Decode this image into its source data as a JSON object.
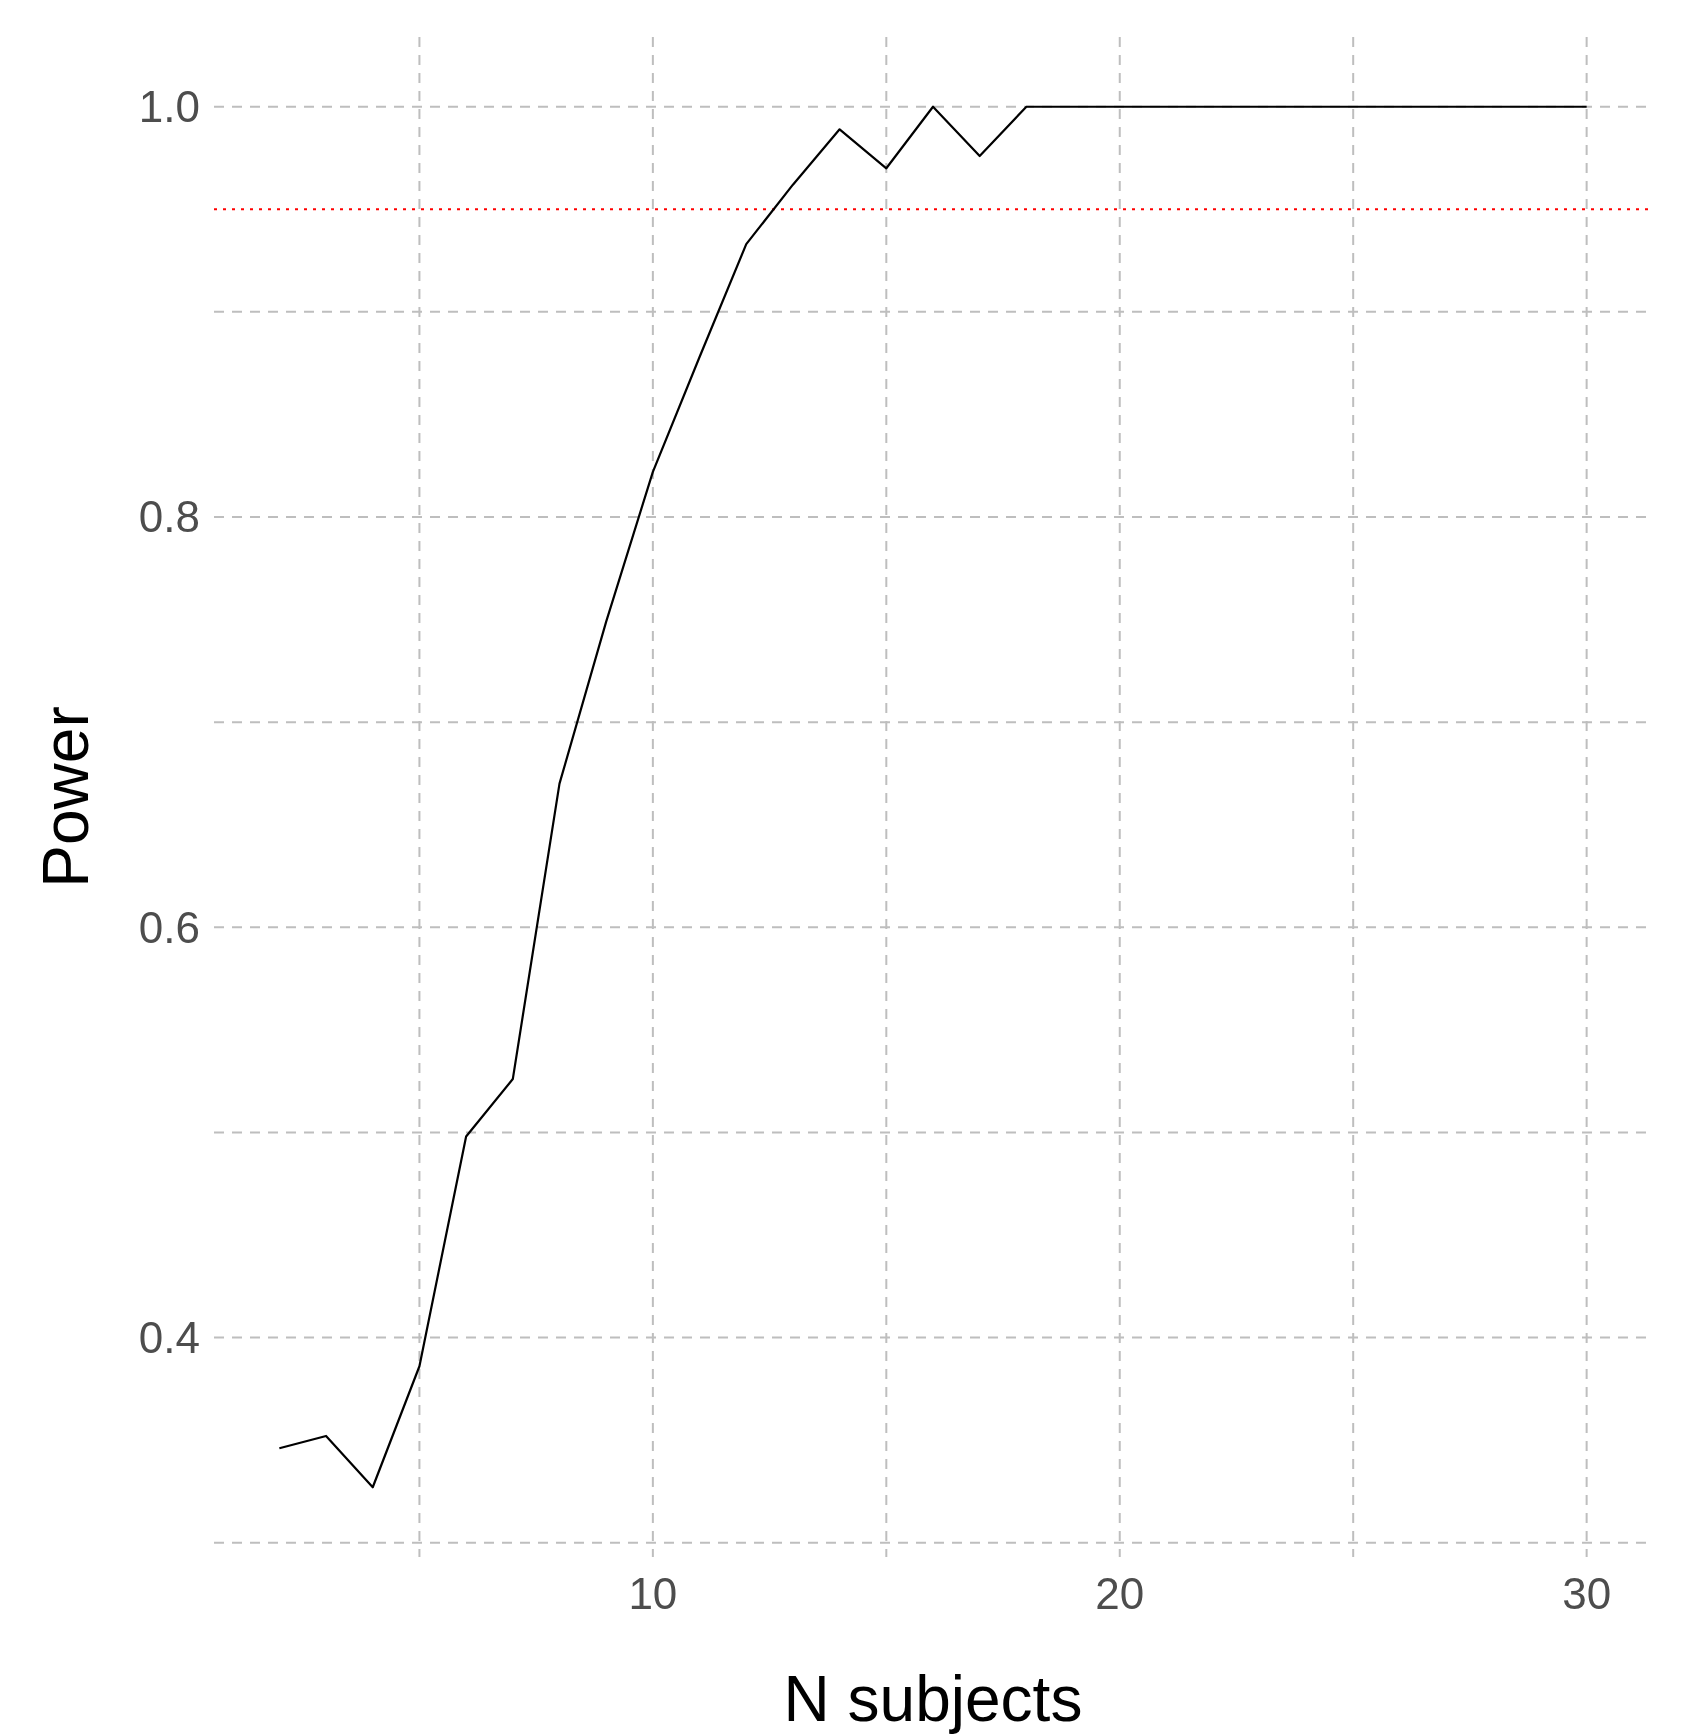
{
  "chart_data": {
    "type": "line",
    "xlabel": "N subjects",
    "ylabel": "Power",
    "x": [
      2,
      3,
      4,
      5,
      6,
      7,
      8,
      9,
      10,
      11,
      12,
      13,
      14,
      15,
      16,
      17,
      18,
      19,
      20,
      21,
      22,
      23,
      24,
      25,
      26,
      27,
      28,
      29,
      30
    ],
    "series": [
      {
        "color": "#000000",
        "values": [
          0.346,
          0.352,
          0.327,
          0.386,
          0.498,
          0.526,
          0.67,
          0.749,
          0.822,
          0.878,
          0.933,
          0.962,
          0.989,
          0.97,
          1,
          0.976,
          1,
          1,
          1,
          1,
          1,
          1,
          1,
          1,
          1,
          1,
          1,
          1,
          1
        ]
      }
    ],
    "xlim": [
      0.6,
      31.4
    ],
    "ylim": [
      0.293,
      1.034
    ],
    "xticks": [
      {
        "value": 5,
        "label": null
      },
      10,
      {
        "value": 15,
        "label": null
      },
      20,
      {
        "value": 25,
        "label": null
      },
      30
    ],
    "yticks": [
      {
        "value": 0.3,
        "label": null
      },
      {
        "value": 0.4,
        "label": "0.4"
      },
      {
        "value": 0.5,
        "label": null
      },
      {
        "value": 0.6,
        "label": "0.6"
      },
      {
        "value": 0.7,
        "label": null
      },
      {
        "value": 0.8,
        "label": "0.8"
      },
      {
        "value": 0.9,
        "label": null
      },
      {
        "value": 1,
        "label": "1.0"
      }
    ],
    "ref_lines": [
      {
        "axis": "y",
        "value": 0.95,
        "color": "#ff0000",
        "line_style": "dotted"
      }
    ],
    "grid": true,
    "line_style": "solid"
  }
}
